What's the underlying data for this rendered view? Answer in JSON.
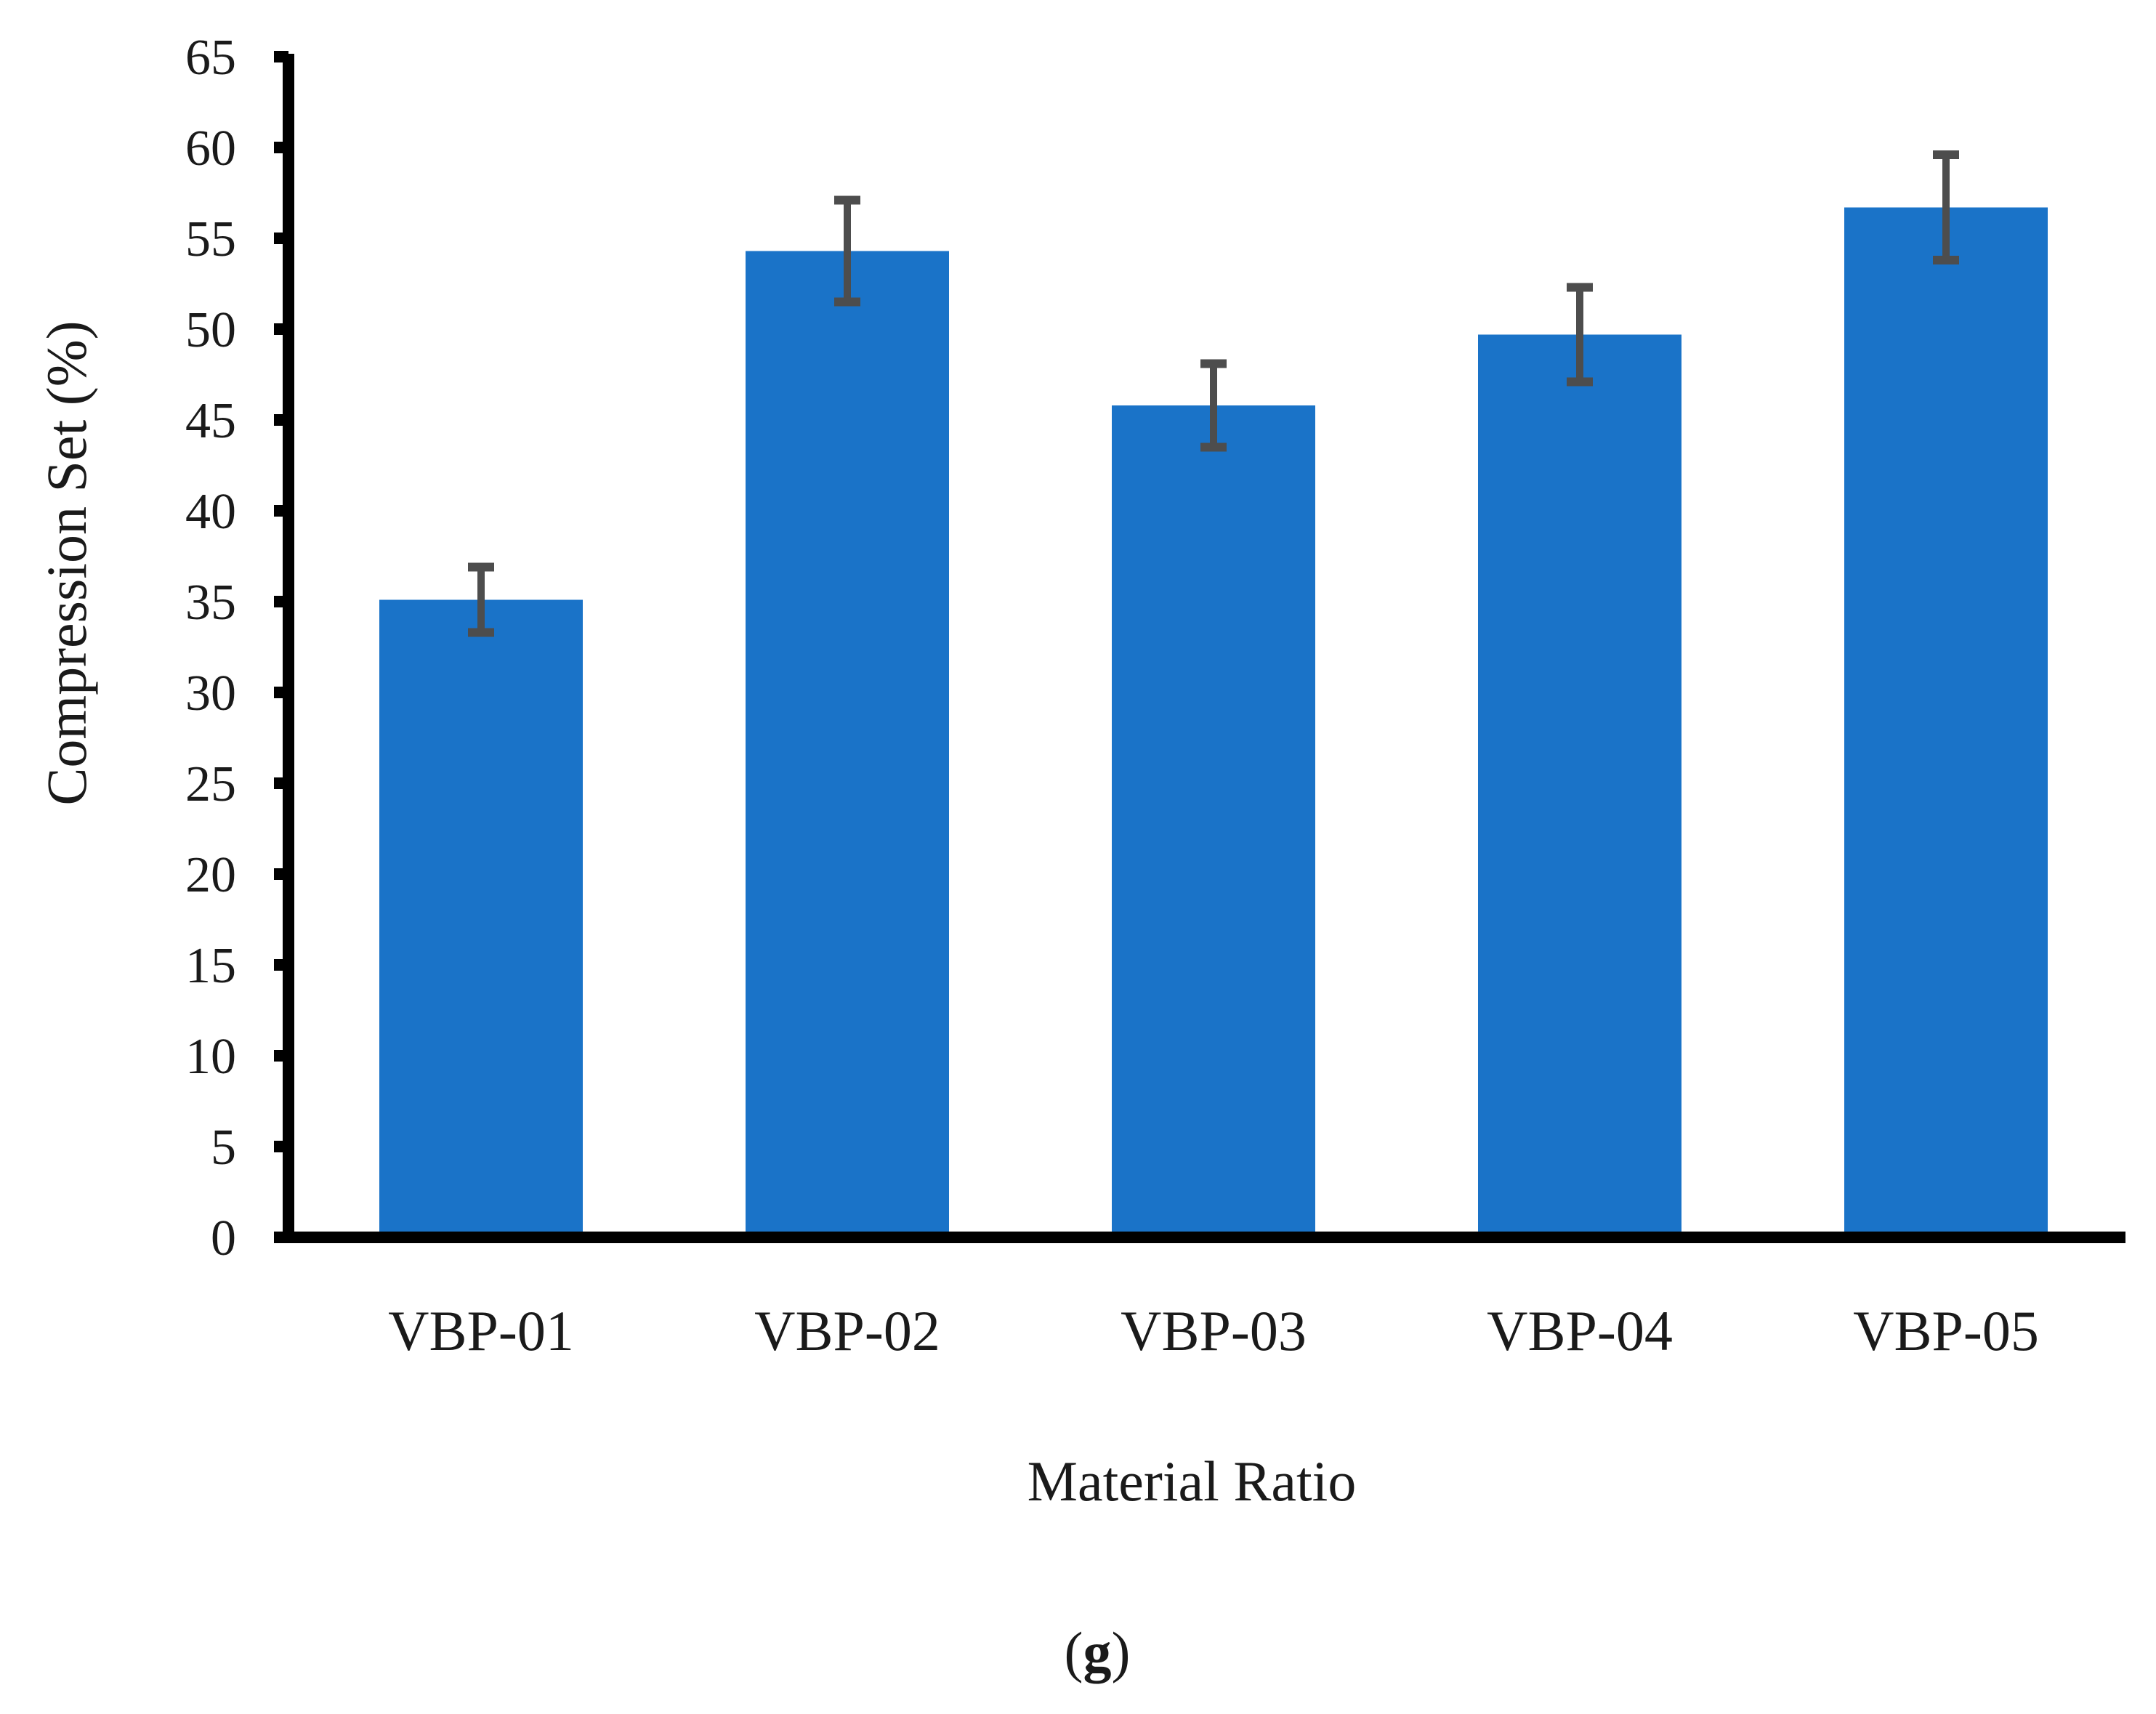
{
  "chart_data": {
    "type": "bar",
    "title": "",
    "xlabel": "Material Ratio",
    "ylabel": "Compression Set (%)",
    "ylim": [
      0,
      65
    ],
    "yticks": [
      0,
      5,
      10,
      15,
      20,
      25,
      30,
      35,
      40,
      45,
      50,
      55,
      60,
      65
    ],
    "grid": false,
    "legend": "none",
    "categories": [
      "VBP-01",
      "VBP-02",
      "VBP-03",
      "VBP-04",
      "VBP-05"
    ],
    "values": [
      35.1,
      54.3,
      45.8,
      49.7,
      56.7
    ],
    "error": [
      1.8,
      2.8,
      2.3,
      2.6,
      2.9
    ],
    "bar_color": "#1a73c8",
    "error_color": "#4d4d4d",
    "axis_color": "#000000"
  },
  "panel_label": {
    "open": "(",
    "letter": "g",
    "close": ")"
  }
}
